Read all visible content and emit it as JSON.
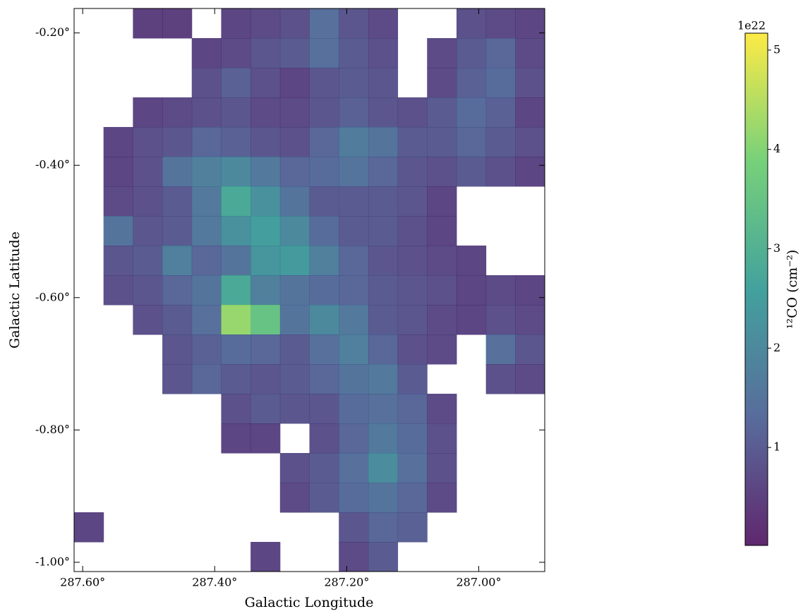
{
  "chart_data": {
    "type": "heatmap",
    "xlabel": "Galactic Longitude",
    "ylabel": "Galactic Latitude",
    "xlim": [
      287.613,
      286.9
    ],
    "ylim": [
      -1.014,
      -0.163
    ],
    "xticks": [
      {
        "value": 287.6,
        "label": "287.60°"
      },
      {
        "value": 287.4,
        "label": "287.40°"
      },
      {
        "value": 287.2,
        "label": "287.20°"
      },
      {
        "value": 287.0,
        "label": "287.00°"
      }
    ],
    "yticks": [
      {
        "value": -0.2,
        "label": "-0.20°"
      },
      {
        "value": -0.4,
        "label": "-0.40°"
      },
      {
        "value": -0.6,
        "label": "-0.60°"
      },
      {
        "value": -0.8,
        "label": "-0.80°"
      },
      {
        "value": -1.0,
        "label": "-1.00°"
      }
    ],
    "colormap": "viridis",
    "colorbar": {
      "label": "¹²CO (cm⁻²)",
      "offset_text": "1e22",
      "clim": [
        0.014,
        5.17
      ],
      "ticks": [
        1,
        2,
        3,
        4,
        5
      ]
    },
    "z": [
      [
        null,
        null,
        0.5,
        0.5,
        null,
        0.6,
        0.7,
        0.8,
        1.4,
        0.9,
        0.7,
        null,
        null,
        0.8,
        0.7,
        0.6
      ],
      [
        null,
        null,
        null,
        null,
        0.6,
        0.7,
        0.9,
        1.0,
        1.4,
        1.0,
        0.8,
        null,
        0.7,
        1.0,
        1.2,
        0.7
      ],
      [
        null,
        null,
        null,
        null,
        0.8,
        1.1,
        0.8,
        0.6,
        0.9,
        1.0,
        0.9,
        null,
        0.7,
        1.1,
        1.3,
        0.8
      ],
      [
        null,
        null,
        0.6,
        0.7,
        0.8,
        0.9,
        0.7,
        0.7,
        0.9,
        1.1,
        0.9,
        0.8,
        1.0,
        1.3,
        1.1,
        0.6
      ],
      [
        null,
        0.6,
        0.8,
        0.9,
        1.2,
        1.1,
        0.9,
        0.8,
        1.2,
        1.7,
        1.5,
        1.0,
        1.0,
        1.2,
        1.0,
        0.8
      ],
      [
        null,
        0.6,
        0.8,
        1.5,
        1.8,
        2.0,
        1.6,
        1.2,
        1.3,
        1.5,
        1.2,
        0.9,
        0.8,
        1.0,
        0.8,
        0.6
      ],
      [
        null,
        0.7,
        0.8,
        1.0,
        1.6,
        2.8,
        2.2,
        1.5,
        1.0,
        1.0,
        1.0,
        0.9,
        0.6,
        null,
        null,
        null
      ],
      [
        null,
        1.5,
        0.9,
        1.0,
        1.6,
        2.2,
        2.5,
        2.0,
        1.3,
        1.0,
        1.0,
        0.8,
        0.6,
        null,
        null,
        null
      ],
      [
        null,
        0.9,
        1.0,
        1.8,
        1.2,
        1.5,
        2.3,
        2.4,
        1.8,
        1.2,
        0.9,
        0.8,
        0.7,
        0.6,
        null,
        null
      ],
      [
        null,
        0.8,
        0.9,
        1.2,
        1.5,
        2.8,
        1.8,
        1.5,
        1.3,
        1.2,
        1.0,
        0.9,
        0.8,
        0.6,
        0.7,
        0.6
      ],
      [
        null,
        null,
        0.8,
        1.0,
        1.4,
        4.2,
        3.5,
        1.5,
        2.0,
        1.6,
        1.0,
        0.9,
        0.7,
        0.6,
        0.8,
        0.7
      ],
      [
        null,
        null,
        null,
        0.9,
        1.1,
        1.3,
        1.2,
        1.0,
        1.4,
        1.8,
        1.2,
        0.8,
        0.7,
        null,
        1.4,
        0.9
      ],
      [
        null,
        null,
        null,
        0.9,
        1.2,
        1.0,
        0.9,
        1.0,
        1.2,
        1.5,
        1.6,
        1.0,
        null,
        null,
        0.8,
        0.7
      ],
      [
        null,
        null,
        null,
        null,
        null,
        0.8,
        1.0,
        0.9,
        0.9,
        1.3,
        1.4,
        1.2,
        0.7,
        null,
        null,
        null
      ],
      [
        null,
        null,
        null,
        null,
        null,
        0.6,
        0.6,
        null,
        0.8,
        1.2,
        1.6,
        1.3,
        0.8,
        null,
        null,
        null
      ],
      [
        null,
        null,
        null,
        null,
        null,
        null,
        null,
        0.8,
        1.0,
        1.4,
        2.1,
        1.4,
        0.8,
        null,
        null,
        null
      ],
      [
        null,
        null,
        null,
        null,
        null,
        null,
        null,
        0.7,
        1.0,
        1.3,
        1.5,
        1.2,
        0.7,
        null,
        null,
        null
      ],
      [
        0.6,
        null,
        null,
        null,
        null,
        null,
        null,
        null,
        null,
        0.9,
        1.2,
        1.1,
        null,
        null,
        null,
        null
      ],
      [
        null,
        null,
        null,
        null,
        null,
        null,
        0.6,
        null,
        null,
        0.7,
        1.0,
        null,
        null,
        null,
        null,
        null
      ]
    ]
  }
}
